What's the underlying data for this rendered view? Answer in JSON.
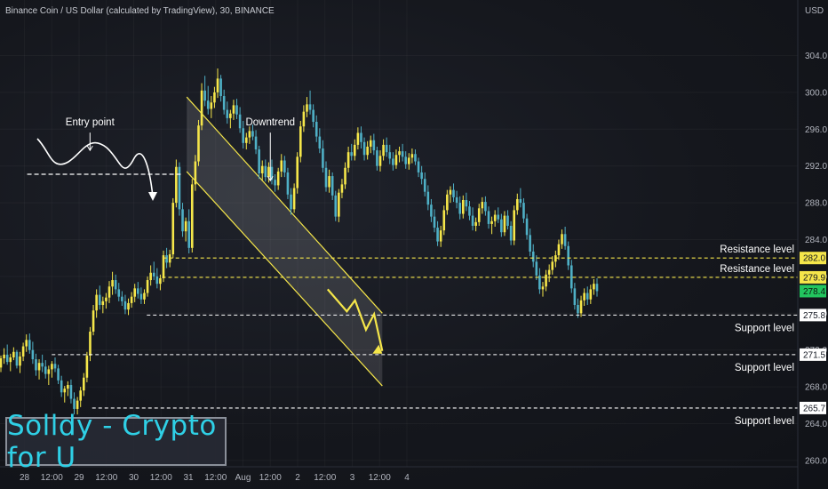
{
  "header": {
    "title": "Binance Coin / US Dollar (calculated by TradingView), 30, BINANCE",
    "currency": "USD"
  },
  "brand": {
    "text": "Solldy - Crypto for U"
  },
  "colors": {
    "up_candle": "#f5e64a",
    "down_candle": "#4fb0c6",
    "level_line_white": "#ffffff",
    "level_line_yellow": "#f5e64a",
    "channel": "#f5e64a",
    "projection": "#f5e64a",
    "brand_text": "#2fd0e6"
  },
  "chart_data": {
    "type": "candlestick",
    "y_ticks": [
      "304.0",
      "300.0",
      "296.0",
      "292.0",
      "288.0",
      "284.0",
      "280.0",
      "276.0",
      "272.0",
      "268.0",
      "264.0",
      "260.0"
    ],
    "x_ticks": [
      "28",
      "12:00",
      "29",
      "12:00",
      "30",
      "12:00",
      "31",
      "12:00",
      "Aug",
      "12:00",
      "2",
      "12:00",
      "3",
      "12:00",
      "4"
    ],
    "price_labels": [
      {
        "text": "282.0",
        "price": 282.0,
        "style": "yellow"
      },
      {
        "text": "279.9",
        "price": 279.9,
        "style": "yellow"
      },
      {
        "text": "278.4",
        "price": 278.4,
        "style": "green"
      },
      {
        "text": "275.8",
        "price": 275.8,
        "style": "white"
      },
      {
        "text": "271.5",
        "price": 271.5,
        "style": "white"
      },
      {
        "text": "265.7",
        "price": 265.7,
        "style": "white"
      }
    ],
    "levels": [
      {
        "price": 282.0,
        "x_start": 2.54,
        "label": "Resistance level",
        "color": "yellow"
      },
      {
        "price": 279.9,
        "x_start": 2.52,
        "label": "Resistance level",
        "color": "yellow"
      },
      {
        "price": 275.8,
        "x_start": 2.24,
        "label": "Support level",
        "color": "white"
      },
      {
        "price": 271.5,
        "x_start": 0.5,
        "label": "Support level",
        "color": "white"
      },
      {
        "price": 265.7,
        "x_start": 1.24,
        "label": "Support level",
        "color": "white"
      }
    ],
    "entry_level": {
      "price": 291.1,
      "x_start": 0.05,
      "x_end": 2.86
    },
    "channel": {
      "upper": [
        [
          5.94,
          299.5
        ],
        [
          13.1,
          276.0
        ]
      ],
      "lower": [
        [
          5.94,
          291.4
        ],
        [
          13.1,
          268.1
        ]
      ]
    },
    "projection": [
      [
        11.1,
        278.6
      ],
      [
        11.8,
        276.2
      ],
      [
        12.1,
        277.4
      ],
      [
        12.5,
        274.2
      ],
      [
        12.8,
        275.9
      ],
      [
        13.1,
        271.9
      ]
    ],
    "annotations": [
      {
        "text": "Entry point",
        "x": 2.4,
        "price": 296.4
      },
      {
        "text": "Downtrend",
        "x": 9.0,
        "price": 296.4
      }
    ],
    "candles": [
      [
        270.1,
        271.4,
        269.6,
        271.1
      ],
      [
        271.1,
        272.2,
        270.5,
        271.5
      ],
      [
        271.5,
        272.6,
        270.4,
        270.7
      ],
      [
        270.7,
        271.6,
        269.7,
        271.2
      ],
      [
        271.2,
        272.3,
        270.9,
        271.8
      ],
      [
        271.8,
        272.0,
        270.0,
        270.3
      ],
      [
        270.3,
        271.8,
        269.5,
        271.3
      ],
      [
        271.3,
        272.8,
        270.8,
        272.4
      ],
      [
        272.4,
        273.7,
        271.8,
        273.1
      ],
      [
        273.1,
        273.8,
        271.6,
        272.0
      ],
      [
        272.0,
        272.9,
        270.5,
        271.0
      ],
      [
        271.0,
        271.6,
        269.2,
        269.8
      ],
      [
        269.8,
        271.0,
        268.8,
        270.6
      ],
      [
        270.6,
        271.5,
        269.6,
        270.2
      ],
      [
        270.2,
        270.9,
        268.9,
        269.4
      ],
      [
        269.4,
        270.3,
        268.2,
        269.9
      ],
      [
        269.9,
        270.8,
        269.0,
        270.5
      ],
      [
        270.5,
        271.2,
        269.6,
        270.0
      ],
      [
        270.0,
        270.4,
        268.3,
        268.7
      ],
      [
        268.7,
        269.2,
        266.9,
        267.4
      ],
      [
        267.4,
        268.1,
        266.3,
        267.8
      ],
      [
        267.8,
        268.6,
        267.0,
        268.2
      ],
      [
        268.2,
        268.8,
        266.2,
        266.7
      ],
      [
        266.7,
        267.4,
        265.0,
        265.6
      ],
      [
        265.6,
        266.9,
        265.0,
        266.5
      ],
      [
        266.5,
        268.0,
        265.8,
        267.6
      ],
      [
        267.6,
        269.5,
        267.0,
        269.0
      ],
      [
        269.0,
        271.8,
        268.5,
        271.4
      ],
      [
        271.4,
        274.5,
        270.8,
        274.0
      ],
      [
        274.0,
        276.9,
        273.6,
        276.3
      ],
      [
        276.3,
        278.6,
        275.5,
        278.0
      ],
      [
        278.0,
        279.0,
        276.4,
        276.9
      ],
      [
        276.9,
        277.8,
        276.0,
        277.3
      ],
      [
        277.3,
        278.2,
        276.5,
        277.7
      ],
      [
        277.7,
        279.5,
        277.1,
        278.9
      ],
      [
        278.9,
        280.5,
        278.0,
        279.6
      ],
      [
        279.6,
        280.2,
        278.1,
        278.6
      ],
      [
        278.6,
        279.3,
        277.3,
        277.8
      ],
      [
        277.8,
        278.4,
        276.8,
        277.3
      ],
      [
        277.3,
        278.0,
        275.9,
        276.4
      ],
      [
        276.4,
        277.6,
        275.8,
        277.1
      ],
      [
        277.1,
        278.3,
        276.6,
        277.8
      ],
      [
        277.8,
        279.2,
        277.2,
        278.7
      ],
      [
        278.7,
        279.4,
        277.6,
        278.1
      ],
      [
        278.1,
        278.8,
        277.0,
        277.5
      ],
      [
        277.5,
        278.6,
        277.0,
        278.2
      ],
      [
        278.2,
        280.0,
        277.8,
        279.6
      ],
      [
        279.6,
        281.2,
        279.0,
        280.4
      ],
      [
        280.4,
        281.6,
        279.6,
        280.0
      ],
      [
        280.0,
        280.9,
        278.7,
        279.2
      ],
      [
        279.2,
        280.2,
        278.5,
        279.8
      ],
      [
        279.8,
        282.8,
        279.4,
        282.3
      ],
      [
        282.3,
        283.1,
        280.9,
        281.5
      ],
      [
        281.5,
        282.9,
        281.0,
        282.4
      ],
      [
        282.4,
        288.5,
        282.0,
        288.0
      ],
      [
        288.0,
        292.7,
        287.5,
        291.9
      ],
      [
        291.9,
        292.4,
        286.6,
        287.3
      ],
      [
        287.3,
        288.0,
        284.3,
        284.9
      ],
      [
        284.9,
        286.4,
        283.8,
        286.0
      ],
      [
        286.0,
        287.3,
        282.5,
        283.1
      ],
      [
        283.1,
        290.6,
        282.6,
        290.0
      ],
      [
        290.0,
        293.2,
        289.3,
        292.5
      ],
      [
        292.5,
        297.0,
        292.0,
        296.4
      ],
      [
        296.4,
        301.0,
        295.9,
        300.2
      ],
      [
        300.2,
        301.8,
        298.5,
        299.1
      ],
      [
        299.1,
        300.7,
        297.6,
        298.2
      ],
      [
        298.2,
        299.6,
        297.2,
        298.9
      ],
      [
        298.9,
        300.6,
        298.3,
        300.0
      ],
      [
        300.0,
        302.6,
        299.4,
        301.5
      ],
      [
        301.5,
        301.9,
        299.0,
        299.6
      ],
      [
        299.6,
        300.3,
        297.6,
        298.1
      ],
      [
        298.1,
        299.0,
        296.6,
        297.2
      ],
      [
        297.2,
        298.1,
        296.1,
        297.7
      ],
      [
        297.7,
        299.2,
        297.0,
        298.6
      ],
      [
        298.6,
        299.3,
        297.1,
        297.6
      ],
      [
        297.6,
        298.4,
        295.6,
        296.1
      ],
      [
        296.1,
        296.9,
        293.9,
        294.5
      ],
      [
        294.5,
        295.6,
        293.8,
        295.1
      ],
      [
        295.1,
        296.3,
        294.4,
        295.8
      ],
      [
        295.8,
        296.5,
        294.8,
        295.2
      ],
      [
        295.2,
        295.9,
        293.3,
        293.8
      ],
      [
        293.8,
        294.2,
        290.6,
        291.2
      ],
      [
        291.2,
        292.6,
        290.4,
        292.0
      ],
      [
        292.0,
        292.7,
        290.3,
        290.8
      ],
      [
        290.8,
        292.4,
        290.2,
        291.9
      ],
      [
        291.9,
        292.7,
        290.0,
        290.5
      ],
      [
        290.5,
        291.1,
        289.2,
        289.9
      ],
      [
        289.9,
        291.8,
        289.4,
        291.4
      ],
      [
        291.4,
        293.3,
        290.8,
        292.6
      ],
      [
        292.6,
        293.1,
        290.8,
        291.3
      ],
      [
        291.3,
        291.8,
        288.4,
        288.9
      ],
      [
        288.9,
        289.6,
        286.7,
        287.3
      ],
      [
        287.3,
        290.1,
        286.9,
        289.6
      ],
      [
        289.6,
        293.5,
        289.0,
        293.0
      ],
      [
        293.0,
        296.9,
        292.4,
        296.3
      ],
      [
        296.3,
        298.6,
        295.7,
        297.9
      ],
      [
        297.9,
        299.5,
        297.3,
        298.7
      ],
      [
        298.7,
        300.2,
        297.6,
        298.1
      ],
      [
        298.1,
        298.7,
        296.2,
        296.8
      ],
      [
        296.8,
        297.5,
        294.6,
        295.2
      ],
      [
        295.2,
        296.1,
        293.4,
        293.9
      ],
      [
        293.9,
        294.8,
        291.3,
        291.8
      ],
      [
        291.8,
        292.5,
        289.2,
        289.7
      ],
      [
        289.7,
        291.6,
        289.1,
        290.9
      ],
      [
        290.9,
        291.3,
        288.3,
        288.8
      ],
      [
        288.8,
        289.3,
        286.0,
        286.5
      ],
      [
        286.5,
        289.5,
        285.9,
        289.1
      ],
      [
        289.1,
        290.6,
        288.5,
        290.0
      ],
      [
        290.0,
        292.4,
        289.5,
        291.8
      ],
      [
        291.8,
        294.1,
        291.3,
        293.5
      ],
      [
        293.5,
        294.4,
        292.6,
        293.1
      ],
      [
        293.1,
        294.9,
        292.6,
        294.3
      ],
      [
        294.3,
        296.2,
        293.8,
        295.6
      ],
      [
        295.6,
        296.3,
        293.9,
        294.6
      ],
      [
        294.6,
        295.1,
        292.6,
        293.2
      ],
      [
        293.2,
        294.7,
        292.7,
        294.1
      ],
      [
        294.1,
        295.3,
        293.4,
        294.8
      ],
      [
        294.8,
        295.5,
        293.2,
        293.7
      ],
      [
        293.7,
        294.1,
        291.5,
        292.0
      ],
      [
        292.0,
        293.7,
        291.4,
        293.1
      ],
      [
        293.1,
        294.9,
        292.6,
        294.3
      ],
      [
        294.3,
        295.1,
        293.0,
        293.5
      ],
      [
        293.5,
        294.3,
        292.2,
        292.8
      ],
      [
        292.8,
        293.5,
        291.5,
        292.1
      ],
      [
        292.1,
        293.8,
        291.7,
        293.2
      ],
      [
        293.2,
        294.1,
        292.4,
        293.6
      ],
      [
        293.6,
        294.4,
        292.5,
        293.0
      ],
      [
        293.0,
        293.6,
        291.7,
        292.2
      ],
      [
        292.2,
        293.4,
        291.6,
        292.9
      ],
      [
        292.9,
        293.9,
        292.3,
        293.3
      ],
      [
        293.3,
        293.8,
        292.1,
        292.5
      ],
      [
        292.5,
        292.9,
        290.8,
        291.3
      ],
      [
        291.3,
        292.0,
        290.0,
        290.6
      ],
      [
        290.6,
        291.3,
        288.7,
        289.2
      ],
      [
        289.2,
        289.9,
        287.2,
        287.8
      ],
      [
        287.8,
        288.4,
        285.9,
        286.5
      ],
      [
        286.5,
        287.3,
        284.8,
        285.3
      ],
      [
        285.3,
        286.0,
        283.3,
        283.8
      ],
      [
        283.8,
        285.5,
        283.2,
        285.0
      ],
      [
        285.0,
        287.7,
        284.5,
        287.2
      ],
      [
        287.2,
        289.4,
        286.7,
        288.9
      ],
      [
        288.9,
        289.8,
        288.0,
        289.4
      ],
      [
        289.4,
        290.1,
        288.1,
        288.6
      ],
      [
        288.6,
        289.3,
        287.4,
        288.0
      ],
      [
        288.0,
        288.7,
        286.2,
        286.8
      ],
      [
        286.8,
        288.8,
        286.3,
        288.3
      ],
      [
        288.3,
        289.1,
        287.1,
        287.6
      ],
      [
        287.6,
        288.2,
        286.1,
        286.6
      ],
      [
        286.6,
        287.5,
        285.0,
        285.5
      ],
      [
        285.5,
        286.4,
        284.9,
        285.9
      ],
      [
        285.9,
        287.9,
        285.5,
        287.4
      ],
      [
        287.4,
        288.6,
        286.8,
        288.1
      ],
      [
        288.1,
        288.7,
        286.6,
        287.1
      ],
      [
        287.1,
        287.6,
        285.2,
        285.7
      ],
      [
        285.7,
        286.5,
        284.6,
        286.0
      ],
      [
        286.0,
        287.2,
        285.4,
        286.7
      ],
      [
        286.7,
        287.5,
        285.8,
        286.2
      ],
      [
        286.2,
        286.8,
        284.3,
        284.8
      ],
      [
        284.8,
        287.1,
        284.4,
        286.6
      ],
      [
        286.6,
        287.2,
        285.1,
        285.5
      ],
      [
        285.5,
        286.0,
        283.4,
        283.9
      ],
      [
        283.9,
        287.7,
        283.4,
        287.2
      ],
      [
        287.2,
        289.0,
        286.7,
        288.4
      ],
      [
        288.4,
        289.6,
        287.5,
        288.0
      ],
      [
        288.0,
        288.5,
        285.8,
        286.3
      ],
      [
        286.3,
        286.8,
        284.0,
        284.5
      ],
      [
        284.5,
        285.2,
        282.2,
        282.7
      ],
      [
        282.7,
        283.5,
        281.0,
        281.6
      ],
      [
        281.6,
        282.3,
        279.6,
        280.1
      ],
      [
        280.1,
        280.9,
        278.1,
        278.6
      ],
      [
        278.6,
        279.4,
        277.8,
        278.9
      ],
      [
        278.9,
        280.7,
        278.4,
        280.2
      ],
      [
        280.2,
        281.3,
        279.4,
        280.7
      ],
      [
        280.7,
        282.2,
        280.2,
        281.6
      ],
      [
        281.6,
        282.8,
        281.0,
        282.3
      ],
      [
        282.3,
        284.0,
        281.8,
        283.5
      ],
      [
        283.5,
        285.1,
        283.0,
        284.6
      ],
      [
        284.6,
        285.4,
        282.9,
        283.3
      ],
      [
        283.3,
        283.8,
        280.7,
        281.2
      ],
      [
        281.2,
        281.8,
        278.2,
        278.7
      ],
      [
        278.7,
        279.3,
        276.4,
        276.9
      ],
      [
        276.9,
        277.6,
        275.5,
        276.0
      ],
      [
        276.0,
        277.9,
        275.6,
        277.4
      ],
      [
        277.4,
        278.7,
        276.8,
        278.2
      ],
      [
        278.2,
        278.9,
        276.9,
        277.5
      ],
      [
        277.5,
        279.1,
        277.0,
        278.6
      ],
      [
        278.6,
        279.7,
        278.0,
        279.2
      ],
      [
        279.2,
        279.8,
        277.8,
        278.4
      ]
    ]
  }
}
